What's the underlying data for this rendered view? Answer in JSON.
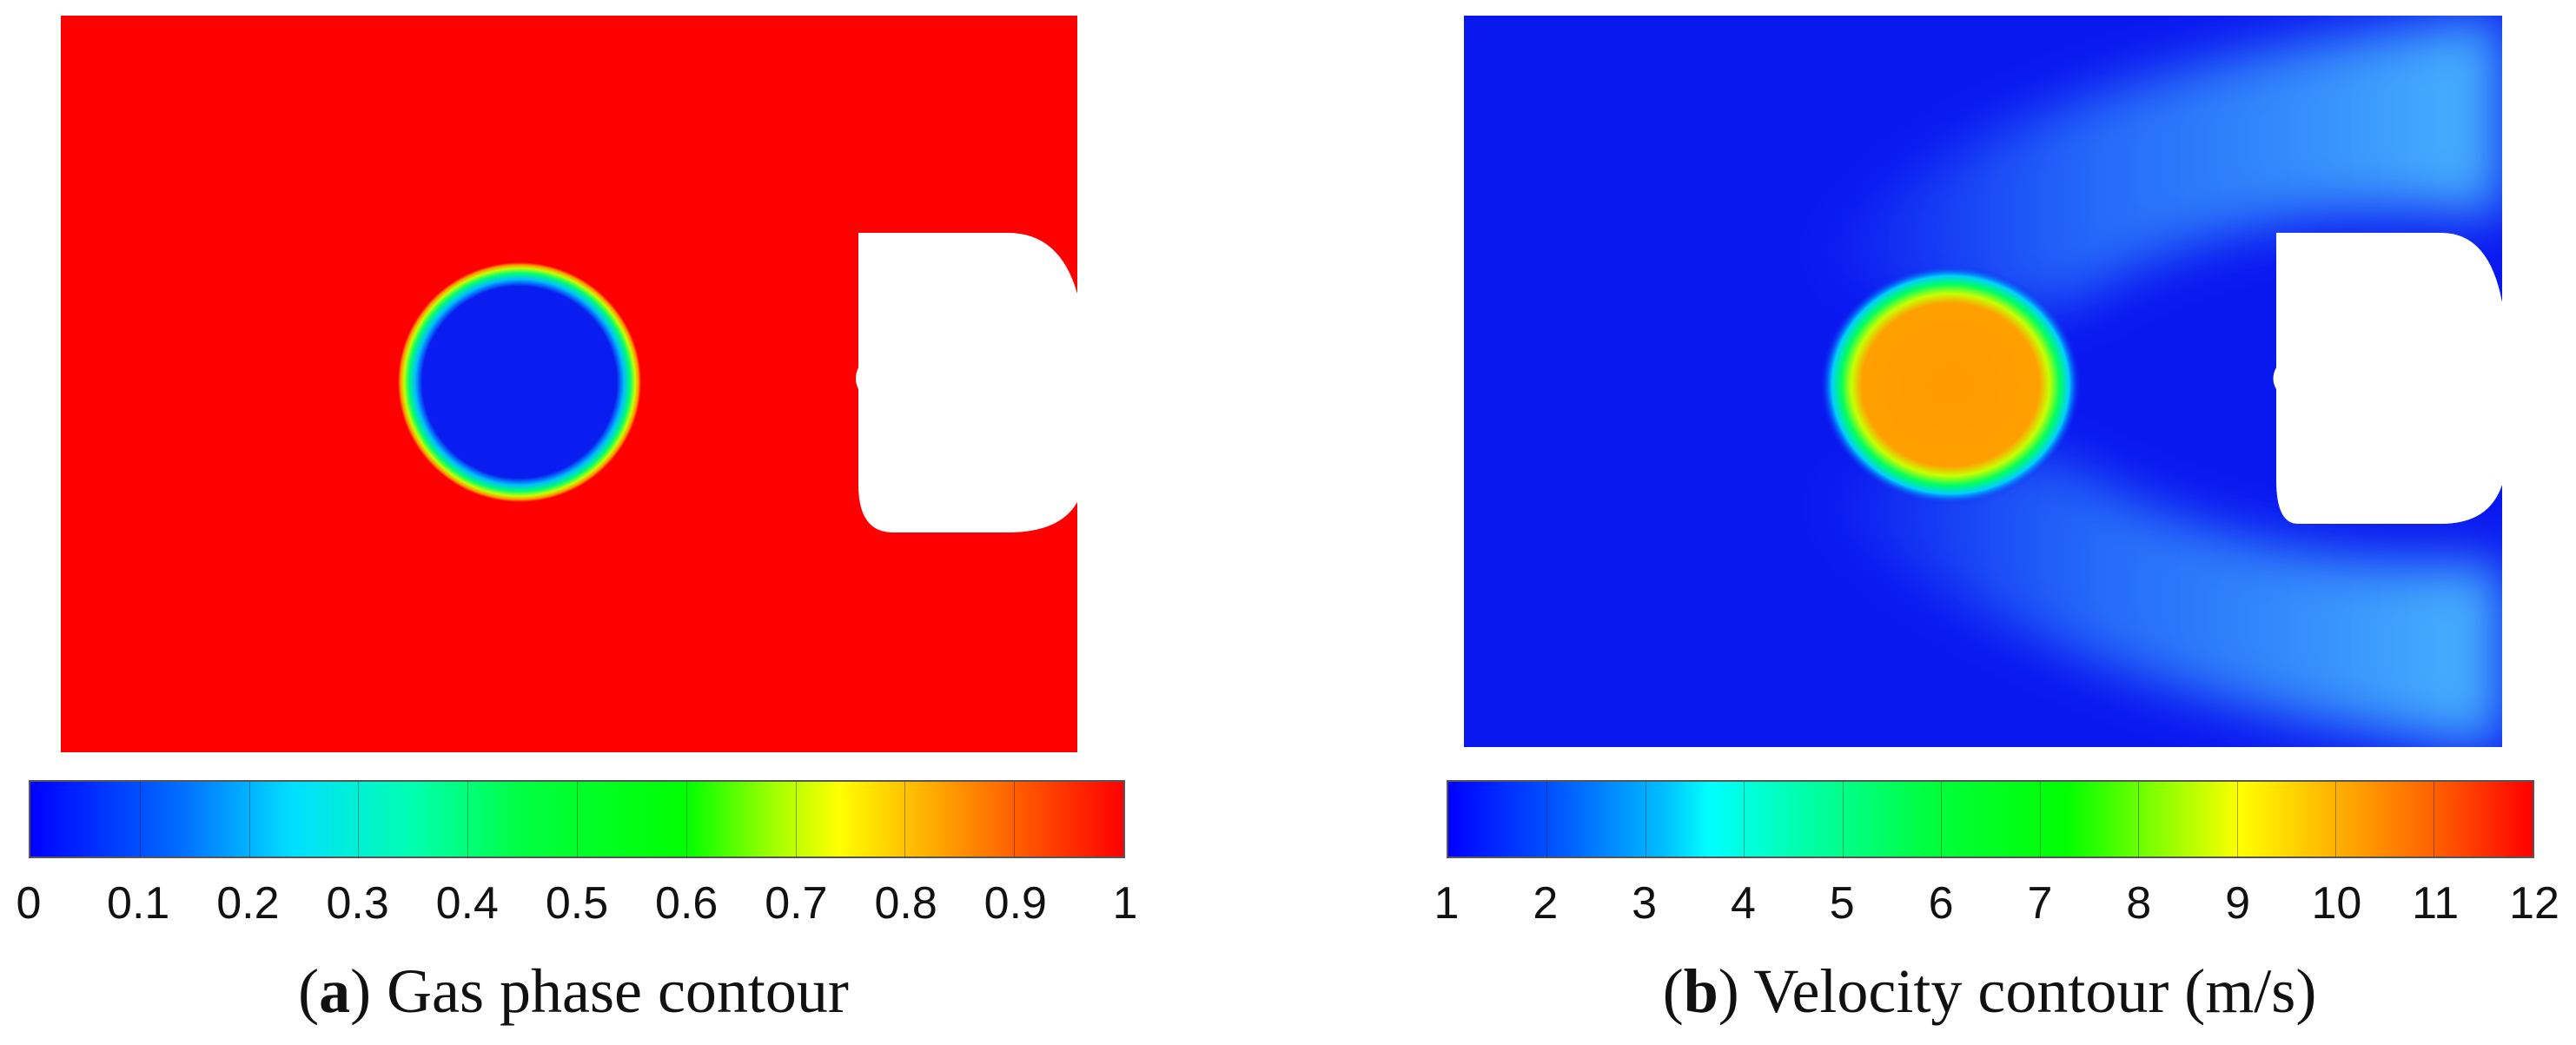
{
  "panel_a": {
    "caption_letter": "a",
    "caption_text": "Gas phase contour",
    "colorbar_ticks": [
      "0",
      "0.1",
      "0.2",
      "0.3",
      "0.4",
      "0.5",
      "0.6",
      "0.7",
      "0.8",
      "0.9",
      "1"
    ],
    "colors": {
      "background": "#ff0000",
      "bubble": "#0a1df0",
      "rim": "#00e040"
    }
  },
  "panel_b": {
    "caption_letter": "b",
    "caption_text": "Velocity contour (m/s)",
    "colorbar_ticks": [
      "1",
      "2",
      "3",
      "4",
      "5",
      "6",
      "7",
      "8",
      "9",
      "10",
      "11",
      "12"
    ],
    "colors": {
      "background": "#0a18f0",
      "wake": "#35a0ff",
      "core": "#ff9a00"
    }
  },
  "colormap": [
    "#0000ff",
    "#0066ff",
    "#00ccff",
    "#00ffcc",
    "#00ff66",
    "#00ff00",
    "#66ff00",
    "#ccff00",
    "#ffcc00",
    "#ff6600",
    "#ff0000"
  ]
}
